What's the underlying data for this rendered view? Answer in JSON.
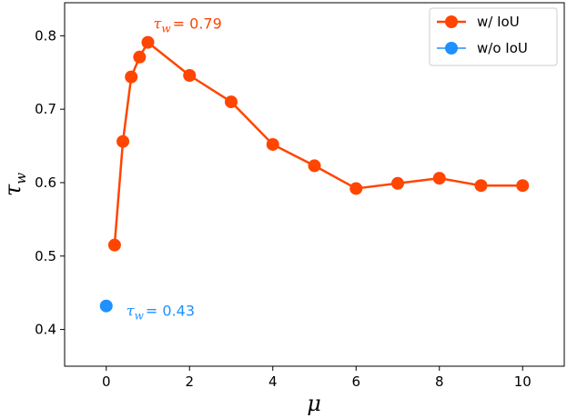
{
  "chart_data": {
    "type": "line",
    "xlabel": "μ",
    "ylabel_symbol": "τ",
    "ylabel_sub": "w",
    "xlim": [
      -1,
      11
    ],
    "ylim": [
      0.35,
      0.845
    ],
    "xticks": [
      0,
      2,
      4,
      6,
      8,
      10
    ],
    "yticks": [
      0.4,
      0.5,
      0.6,
      0.7,
      0.8
    ],
    "xtick_labels": [
      "0",
      "2",
      "4",
      "6",
      "8",
      "10"
    ],
    "ytick_labels": [
      "0.4",
      "0.5",
      "0.6",
      "0.7",
      "0.8"
    ],
    "grid": false,
    "legend_placement": "top-right",
    "series": [
      {
        "name": "w/ IoU",
        "color": "#ff4500",
        "x": [
          0.2,
          0.4,
          0.6,
          0.8,
          1,
          2,
          3,
          4,
          5,
          6,
          7,
          8,
          9,
          10
        ],
        "y": [
          0.515,
          0.656,
          0.744,
          0.771,
          0.791,
          0.746,
          0.71,
          0.652,
          0.623,
          0.592,
          0.599,
          0.606,
          0.596,
          0.596
        ]
      },
      {
        "name": "w/o IoU",
        "color": "#1e90ff",
        "x": [
          0
        ],
        "y": [
          0.432
        ]
      }
    ],
    "annotations": [
      {
        "tau": "τ",
        "sub": "w",
        "value": "= 0.79",
        "color": "#ff4500",
        "x": 1.0,
        "y": 0.791,
        "anchor": "above"
      },
      {
        "tau": "τ",
        "sub": "w",
        "value": "= 0.43",
        "color": "#1e90ff",
        "x": 0,
        "y": 0.432,
        "anchor": "right"
      }
    ]
  }
}
